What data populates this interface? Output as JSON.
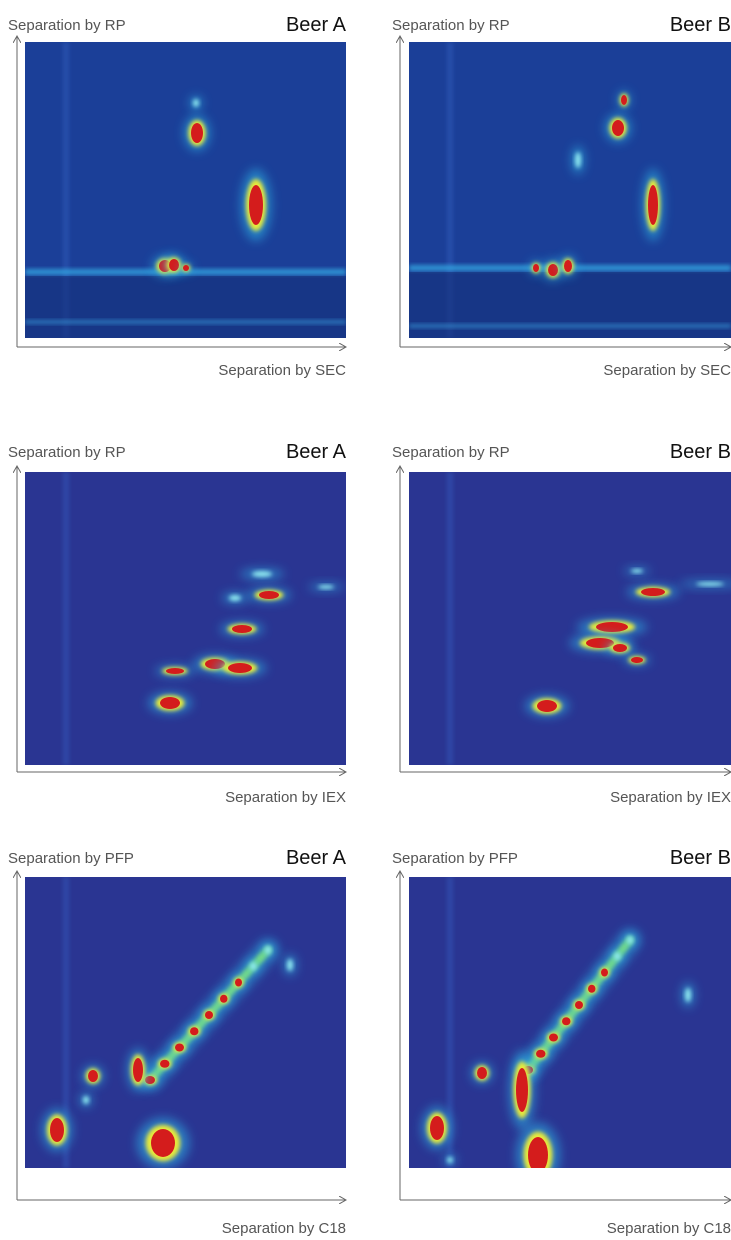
{
  "panels": [
    {
      "y_label": "Separation by RP",
      "title": "Beer A",
      "x_label": "Separation by SEC"
    },
    {
      "y_label": "Separation by RP",
      "title": "Beer B",
      "x_label": "Separation by SEC"
    },
    {
      "y_label": "Separation by RP",
      "title": "Beer A",
      "x_label": "Separation by IEX"
    },
    {
      "y_label": "Separation by RP",
      "title": "Beer B",
      "x_label": "Separation by IEX"
    },
    {
      "y_label": "Separation by PFP",
      "title": "Beer A",
      "x_label": "Separation by C18"
    },
    {
      "y_label": "Separation by PFP",
      "title": "Beer B",
      "x_label": "Separation by C18"
    }
  ]
}
